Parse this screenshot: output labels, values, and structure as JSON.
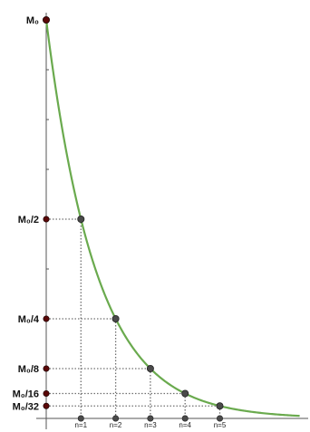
{
  "chart_data": {
    "type": "line",
    "title": "",
    "xlabel": "",
    "ylabel": "",
    "x": [
      0,
      1,
      2,
      3,
      4,
      5
    ],
    "y": [
      1,
      0.5,
      0.25,
      0.125,
      0.0625,
      0.03125
    ],
    "y_tick_labels": [
      "M₀",
      "M₀/2",
      "M₀/4",
      "M₀/8",
      "M₀/16",
      "M₀/32"
    ],
    "x_tick_labels": [
      "n=1",
      "n=2",
      "n=3",
      "n=4",
      "n=5"
    ],
    "xlim": [
      0,
      7.3
    ],
    "ylim": [
      0,
      1
    ],
    "grid": false,
    "legend": "none",
    "colors": {
      "curve": "#6aaa4e",
      "axis": "#555555",
      "guide": "#707070",
      "point": "#4a4a4a",
      "axis_dot": "#5a0808"
    }
  }
}
